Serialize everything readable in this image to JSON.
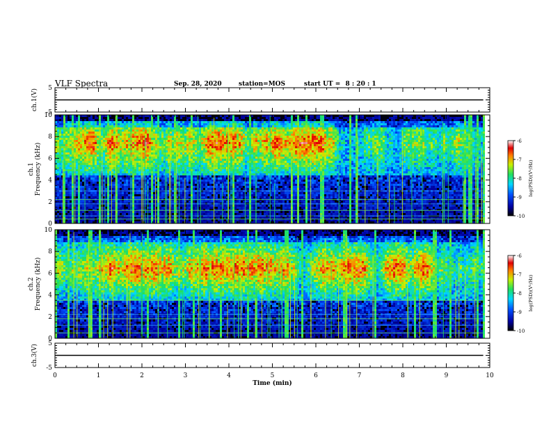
{
  "header": {
    "title": "VLF Spectra",
    "date": "Sep. 28, 2020",
    "station": "station=MOS",
    "start_label": "start UT =",
    "start_time": "8 : 20 : 1"
  },
  "chart_data": [
    {
      "type": "line",
      "panel": "ch1-waveform",
      "ylabel": "ch.1(V)",
      "ylim": [
        -5,
        5
      ],
      "yticks": [
        "5",
        "-5"
      ],
      "series": [
        {
          "x": [
            0,
            9.85
          ],
          "values": [
            0,
            0
          ]
        }
      ]
    },
    {
      "type": "heatmap",
      "panel": "ch1-spectrogram",
      "ylabel": "ch.1\nFrequency (kHz)",
      "ylim": [
        0,
        10
      ],
      "yticks": [
        "0",
        "2",
        "4",
        "6",
        "8",
        "10"
      ],
      "xlim": [
        0,
        9.85
      ],
      "colorbar": {
        "label": "log(PSD)(V²/Hz)",
        "ticks": [
          "-6",
          "-7",
          "-8",
          "-9",
          "-10"
        ],
        "range": [
          -10,
          -6
        ]
      },
      "dominant_band_khz": [
        4.5,
        9.5
      ],
      "peak_band_khz": [
        6,
        9
      ],
      "noise_lines_khz": [
        0.4,
        0.7,
        1.2,
        1.8,
        2.2,
        3.0
      ]
    },
    {
      "type": "heatmap",
      "panel": "ch2-spectrogram",
      "ylabel": "ch.2\nFrequency (kHz)",
      "ylim": [
        0,
        10
      ],
      "yticks": [
        "0",
        "2",
        "4",
        "6",
        "8",
        "10"
      ],
      "xlim": [
        0,
        9.85
      ],
      "colorbar": {
        "label": "log(PSD)(V²/Hz)",
        "ticks": [
          "-6",
          "-7",
          "-8",
          "-9",
          "-10"
        ],
        "range": [
          -10,
          -6
        ]
      },
      "dominant_band_khz": [
        3.5,
        9.5
      ],
      "peak_band_khz": [
        5.5,
        7.5
      ],
      "noise_lines_khz": [
        0.5,
        1.2,
        1.8,
        2.2,
        3.5
      ]
    },
    {
      "type": "line",
      "panel": "ch3-waveform",
      "ylabel": "ch.3(V)",
      "ylim": [
        -5,
        5
      ],
      "yticks": [
        "5",
        "-5"
      ],
      "series": [
        {
          "x": [
            0,
            9.85
          ],
          "values": [
            0,
            0
          ]
        }
      ]
    }
  ],
  "xaxis": {
    "label": "Time (min)",
    "ticks": [
      "0",
      "1",
      "2",
      "3",
      "4",
      "5",
      "6",
      "7",
      "8",
      "9",
      "10"
    ],
    "range": [
      0,
      10
    ]
  },
  "colors": {
    "background": "#ffffff",
    "axis": "#000000",
    "spectro_floor": "#000010"
  }
}
